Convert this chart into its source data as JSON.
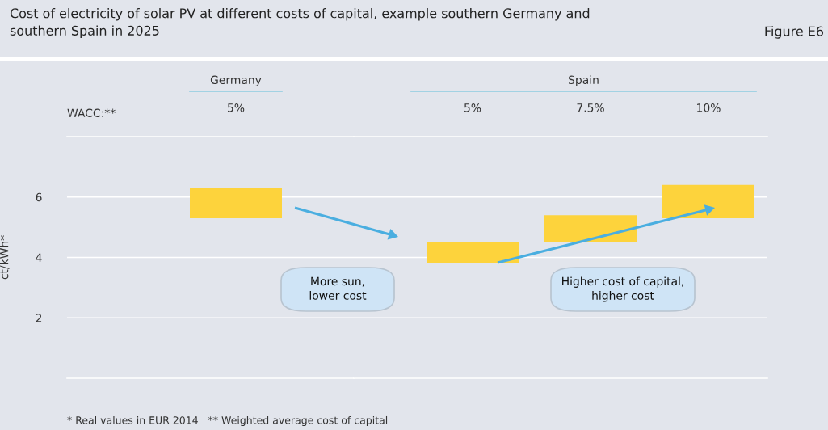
{
  "chart_data": [
    {
      "type": "bar",
      "title": "Germany",
      "xlabel": "WACC:**",
      "ylabel": "ct/kWh*",
      "categories": [
        "5%"
      ],
      "base": [
        5.3
      ],
      "values": [
        1.0
      ],
      "color": "#fdd33c",
      "ylim": [
        0,
        8
      ],
      "yticks": [
        2,
        4,
        6
      ],
      "grid": "y",
      "annotations": [
        "Cost of electricity of solar PV at different costs of capital, example southern Germany and\nsouthern Spain in 2025",
        "Figure E6",
        "More sun,\nlower cost",
        "* Real values in EUR 2014   ** Weighted average cost of capital"
      ]
    },
    {
      "type": "bar",
      "title": "Spain",
      "categories": [
        "5%",
        "7.5%",
        "10%"
      ],
      "base": [
        3.8,
        4.5,
        5.3
      ],
      "values": [
        0.7,
        0.9,
        1.1
      ],
      "color": "#fdd33c",
      "ylim": [
        0,
        8
      ],
      "yticks": [
        2,
        4,
        6
      ],
      "grid": "y",
      "tick_labels": "x",
      "annotations": [
        "Higher cost of capital,\nhigher cost"
      ]
    }
  ]
}
